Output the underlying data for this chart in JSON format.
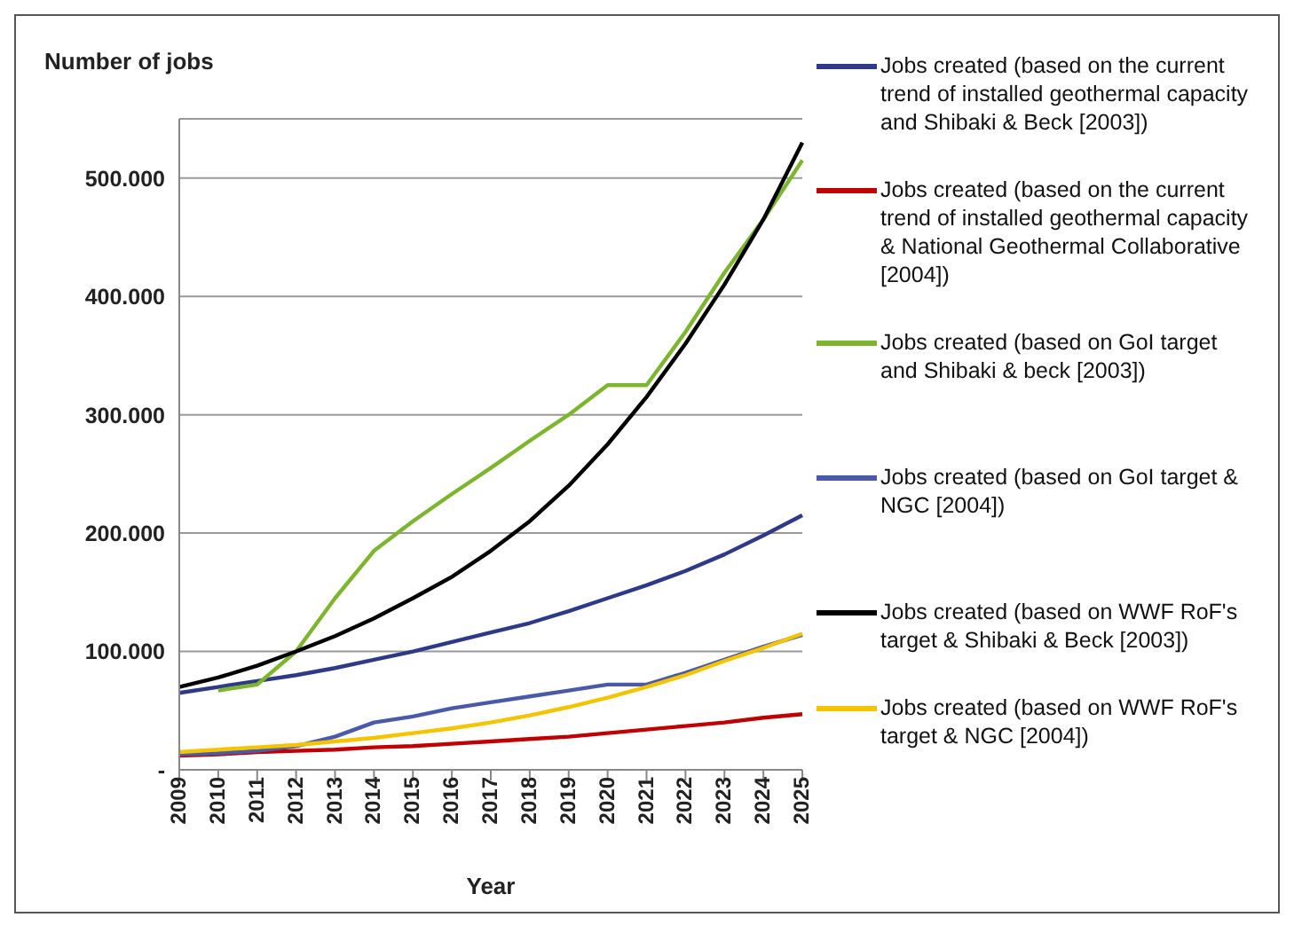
{
  "chart_data": {
    "type": "line",
    "ylabel": "Number of jobs",
    "xlabel": "Year",
    "categories": [
      "2009",
      "2010",
      "2011",
      "2012",
      "2013",
      "2014",
      "2015",
      "2016",
      "2017",
      "2018",
      "2019",
      "2020",
      "2021",
      "2022",
      "2023",
      "2024",
      "2025"
    ],
    "series": [
      {
        "name": "Jobs created (based on the current trend of installed geothermal capacity and Shibaki & Beck [2003])",
        "color": "#2e3a87",
        "values": [
          65000,
          70000,
          75000,
          80000,
          86000,
          93000,
          100000,
          108000,
          116000,
          124000,
          134000,
          145000,
          156000,
          168000,
          182000,
          198000,
          215000
        ]
      },
      {
        "name": "Jobs created (based on the current trend of installed geothermal capacity & National Geothermal Collaborative [2004])",
        "color": "#c00000",
        "values": [
          12000,
          13000,
          15000,
          16000,
          17000,
          19000,
          20000,
          22000,
          24000,
          26000,
          28000,
          31000,
          34000,
          37000,
          40000,
          44000,
          47000
        ]
      },
      {
        "name": "Jobs created (based on GoI target and Shibaki & beck [2003])",
        "color": "#7db52f",
        "values": [
          null,
          67000,
          72000,
          100000,
          145000,
          185000,
          210000,
          233000,
          255000,
          278000,
          300000,
          325000,
          325000,
          370000,
          420000,
          465000,
          515000
        ]
      },
      {
        "name": "Jobs created (based on GoI target & NGC [2004])",
        "color": "#4a5aa8",
        "values": [
          13000,
          14000,
          16000,
          20000,
          28000,
          40000,
          45000,
          52000,
          57000,
          62000,
          67000,
          72000,
          72000,
          82000,
          93000,
          104000,
          114000
        ]
      },
      {
        "name": "Jobs created (based on WWF RoF's target & Shibaki & Beck [2003])",
        "color": "#000000",
        "values": [
          70000,
          78000,
          88000,
          100000,
          113000,
          128000,
          145000,
          163000,
          185000,
          210000,
          240000,
          275000,
          315000,
          360000,
          410000,
          465000,
          530000
        ]
      },
      {
        "name": "Jobs created (based on WWF RoF's target & NGC [2004])",
        "color": "#f5c400",
        "values": [
          15000,
          17000,
          19000,
          21000,
          24000,
          27000,
          31000,
          35000,
          40000,
          46000,
          53000,
          61000,
          70000,
          80000,
          92000,
          103000,
          115000
        ]
      }
    ],
    "ylim": [
      0,
      550000
    ],
    "yticks": [
      {
        "value": 0,
        "label": "-"
      },
      {
        "value": 100000,
        "label": "100.000"
      },
      {
        "value": 200000,
        "label": "200.000"
      },
      {
        "value": 300000,
        "label": "300.000"
      },
      {
        "value": 400000,
        "label": "400.000"
      },
      {
        "value": 500000,
        "label": "500.000"
      }
    ],
    "grid": "y",
    "legend": "right",
    "marker": "none",
    "line_style": "solid"
  }
}
